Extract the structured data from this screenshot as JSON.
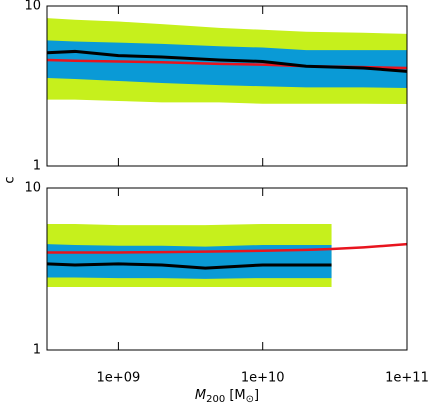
{
  "x_axis": {
    "log": true,
    "xlim": [
      320000000.0,
      100000000000.0
    ],
    "xticks": [
      {
        "value": 1000000000.0,
        "label": "1e+09"
      },
      {
        "value": 10000000000.0,
        "label": "1e+10"
      },
      {
        "value": 100000000000.0,
        "label": "1e+11"
      }
    ],
    "xlabel": [
      "M",
      "200",
      " [M",
      "⊙",
      "]"
    ]
  },
  "ylabel": "c",
  "chart_data": [
    {
      "type": "line",
      "log": true,
      "ylim": [
        1,
        10
      ],
      "yticks": [
        1,
        10
      ],
      "x": [
        320000000.0,
        500000000.0,
        1000000000.0,
        2000000000.0,
        5000000000.0,
        10000000000.0,
        20000000000.0,
        50000000000.0,
        100000000000.0
      ],
      "bands": [
        {
          "color": "#c6f01c",
          "upper": [
            8.4,
            8.2,
            8.0,
            7.7,
            7.3,
            7.1,
            6.9,
            6.8,
            6.7
          ],
          "lower": [
            2.6,
            2.6,
            2.55,
            2.5,
            2.5,
            2.45,
            2.45,
            2.45,
            2.44
          ]
        },
        {
          "color": "#0a9ad6",
          "upper": [
            6.1,
            6.0,
            5.9,
            5.8,
            5.6,
            5.5,
            5.3,
            5.3,
            5.3
          ],
          "lower": [
            3.55,
            3.5,
            3.4,
            3.3,
            3.2,
            3.15,
            3.1,
            3.1,
            3.07
          ]
        }
      ],
      "series": [
        {
          "color": "#e8141e",
          "values": [
            4.6,
            4.55,
            4.5,
            4.45,
            4.35,
            4.3,
            4.2,
            4.15,
            4.1
          ]
        },
        {
          "color": "#000000",
          "values": [
            5.1,
            5.2,
            4.9,
            4.8,
            4.6,
            4.5,
            4.2,
            4.1,
            3.9
          ]
        }
      ]
    },
    {
      "type": "line",
      "log": true,
      "ylim": [
        1,
        10
      ],
      "yticks": [
        1,
        10
      ],
      "x": [
        320000000.0,
        500000000.0,
        1000000000.0,
        2000000000.0,
        4000000000.0,
        10000000000.0,
        20000000000.0,
        30000000000.0,
        50000000000.0,
        100000000000.0
      ],
      "bands": [
        {
          "color": "#c6f01c",
          "upper": [
            6.0,
            6.0,
            5.9,
            5.9,
            5.9,
            6.0,
            6.0,
            6.0,
            null,
            null
          ],
          "lower": [
            2.45,
            2.45,
            2.45,
            2.45,
            2.45,
            2.45,
            2.45,
            2.45,
            null,
            null
          ]
        },
        {
          "color": "#0a9ad6",
          "upper": [
            4.5,
            4.45,
            4.4,
            4.4,
            4.35,
            4.45,
            4.45,
            4.45,
            null,
            null
          ],
          "lower": [
            2.8,
            2.8,
            2.78,
            2.78,
            2.75,
            2.78,
            2.78,
            2.78,
            null,
            null
          ]
        }
      ],
      "series": [
        {
          "color": "#e8141e",
          "values": [
            4.0,
            4.0,
            4.0,
            4.02,
            4.05,
            4.1,
            4.15,
            4.2,
            4.3,
            4.5
          ]
        },
        {
          "color": "#000000",
          "values": [
            3.4,
            3.35,
            3.4,
            3.35,
            3.2,
            3.35,
            3.35,
            3.35,
            null,
            null
          ]
        }
      ]
    }
  ]
}
